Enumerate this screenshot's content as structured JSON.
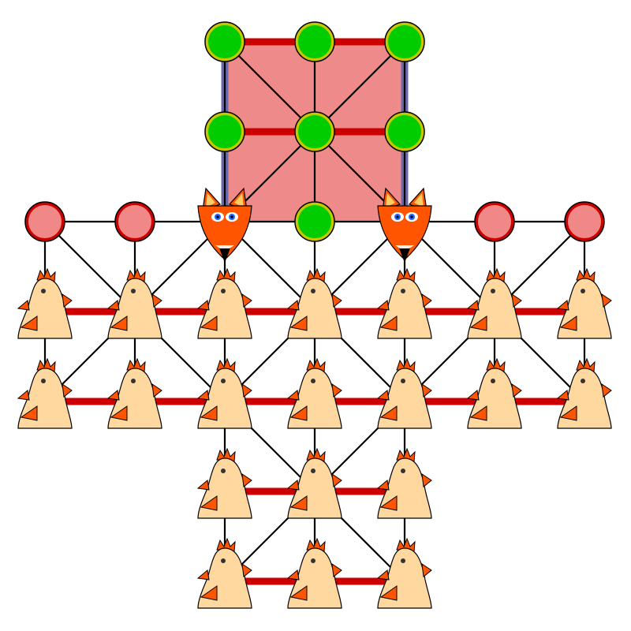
{
  "game": {
    "name": "",
    "grid_columns": 7,
    "grid_rows": 7,
    "goal_zone_cells": [
      [
        2,
        0
      ],
      [
        3,
        0
      ],
      [
        4,
        0
      ],
      [
        2,
        1
      ],
      [
        3,
        1
      ],
      [
        4,
        1
      ],
      [
        2,
        2
      ],
      [
        3,
        2
      ],
      [
        4,
        2
      ]
    ],
    "colors": {
      "background": "#ffffff",
      "goal_zone_fill": "#ef8a8a",
      "goal_zone_side": "#6a6aaa",
      "line": "#000000",
      "occupied_marker": "#cc0000",
      "green_node": "#00cc00",
      "green_ring": "#c8c800",
      "red_node": "#f08888",
      "red_ring": "#cc0000",
      "fox_fur": "#ff5500",
      "fox_ear_inner": "#ffcc66",
      "fox_eye": "#2266ff",
      "chicken_body": "#ffd8a0",
      "chicken_comb": "#ff5500"
    }
  },
  "pieces": {
    "foxes": [
      [
        2,
        2
      ],
      [
        4,
        2
      ]
    ],
    "chickens": [
      [
        0,
        3
      ],
      [
        1,
        3
      ],
      [
        2,
        3
      ],
      [
        3,
        3
      ],
      [
        4,
        3
      ],
      [
        5,
        3
      ],
      [
        6,
        3
      ],
      [
        0,
        4
      ],
      [
        1,
        4
      ],
      [
        2,
        4
      ],
      [
        3,
        4
      ],
      [
        4,
        4
      ],
      [
        5,
        4
      ],
      [
        6,
        4
      ],
      [
        2,
        5
      ],
      [
        3,
        5
      ],
      [
        4,
        5
      ],
      [
        2,
        6
      ],
      [
        3,
        6
      ],
      [
        4,
        6
      ]
    ],
    "green_targets": [
      [
        2,
        0
      ],
      [
        3,
        0
      ],
      [
        4,
        0
      ],
      [
        2,
        1
      ],
      [
        3,
        1
      ],
      [
        4,
        1
      ],
      [
        3,
        2
      ]
    ],
    "red_empty": [
      [
        0,
        2
      ],
      [
        1,
        2
      ],
      [
        5,
        2
      ],
      [
        6,
        2
      ]
    ]
  }
}
